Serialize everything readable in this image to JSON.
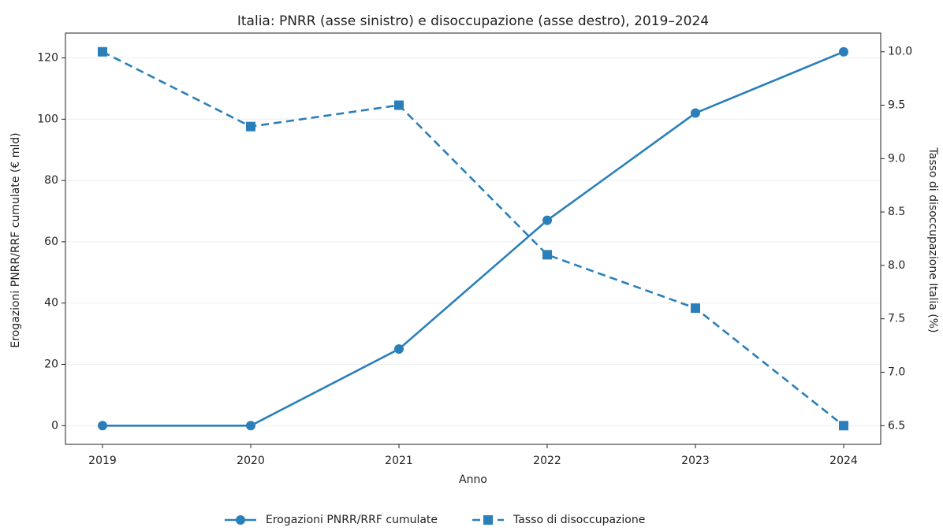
{
  "chart_data": {
    "type": "line",
    "title": "Italia: PNRR (asse sinistro) e disoccupazione (asse destro), 2019–2024",
    "x_label": "Anno",
    "y_label": "Erogazioni PNRR/RRF cumulate (€ mld)",
    "y2_label": "Tasso di disoccupazione Italia (%)",
    "x": [
      2019,
      2020,
      2021,
      2022,
      2023,
      2024
    ],
    "xlim": [
      2018.75,
      2024.25
    ],
    "xticks": [
      2019,
      2020,
      2021,
      2022,
      2023,
      2024
    ],
    "ylim": [
      -6.1,
      128.1
    ],
    "yticks": [
      0,
      20,
      40,
      60,
      80,
      100,
      120
    ],
    "y2lim": [
      6.325,
      10.175
    ],
    "y2ticks": [
      {
        "value": 6.5,
        "label": "6.5"
      },
      {
        "value": 7,
        "label": "7.0"
      },
      {
        "value": 7.5,
        "label": "7.5"
      },
      {
        "value": 8,
        "label": "8.0"
      },
      {
        "value": 8.5,
        "label": "8.5"
      },
      {
        "value": 9,
        "label": "9.0"
      },
      {
        "value": 9.5,
        "label": "9.5"
      },
      {
        "value": 10,
        "label": "10.0"
      }
    ],
    "grid": true,
    "legend": "bottom",
    "series": [
      {
        "name": "Erogazioni PNRR/RRF cumulate",
        "color": "#2a7fba",
        "marker": "circle",
        "dash": false,
        "values": [
          0,
          0,
          25,
          67,
          102,
          122
        ]
      },
      {
        "name": "Tasso di disoccupazione",
        "color": "#2a7fba",
        "marker": "square",
        "dash": true,
        "axis": "y2",
        "values": [
          10,
          9.3,
          9.5,
          8.1,
          7.6,
          6.5
        ]
      }
    ]
  }
}
